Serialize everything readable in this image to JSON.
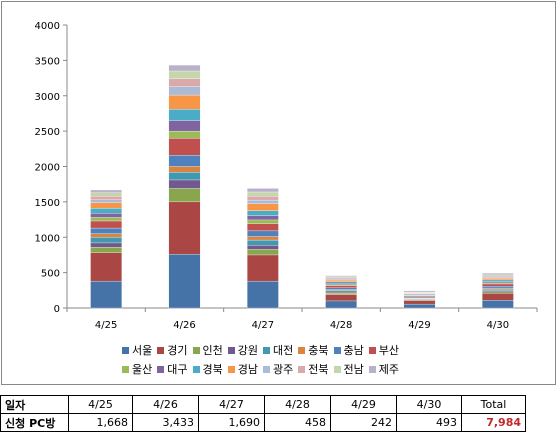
{
  "chart_data": {
    "type": "bar",
    "stacked": true,
    "categories": [
      "4/25",
      "4/26",
      "4/27",
      "4/28",
      "4/29",
      "4/30"
    ],
    "ylim": [
      0,
      4000
    ],
    "yticks": [
      0,
      500,
      1000,
      1500,
      2000,
      2500,
      3000,
      3500,
      4000
    ],
    "ytick_labels": [
      "0",
      "500",
      "1000",
      "1500",
      "2000",
      "2500",
      "3000",
      "3500",
      "4000"
    ],
    "legend_position": "bottom",
    "series": [
      {
        "name": "서울",
        "color": "#4572A7",
        "values": [
          380,
          760,
          380,
          100,
          55,
          110
        ]
      },
      {
        "name": "경기",
        "color": "#AA4643",
        "values": [
          400,
          740,
          370,
          90,
          50,
          100
        ]
      },
      {
        "name": "인천",
        "color": "#89A54E",
        "values": [
          80,
          190,
          80,
          20,
          10,
          20
        ]
      },
      {
        "name": "강원",
        "color": "#71588F",
        "values": [
          60,
          120,
          55,
          15,
          7,
          15
        ]
      },
      {
        "name": "대전",
        "color": "#4198AF",
        "values": [
          80,
          110,
          75,
          20,
          10,
          22
        ]
      },
      {
        "name": "충북",
        "color": "#DB843D",
        "values": [
          50,
          80,
          50,
          15,
          7,
          15
        ]
      },
      {
        "name": "충남",
        "color": "#4F81BD",
        "values": [
          80,
          160,
          80,
          25,
          12,
          25
        ]
      },
      {
        "name": "부산",
        "color": "#C0504D",
        "values": [
          100,
          240,
          100,
          30,
          15,
          33
        ]
      },
      {
        "name": "울산",
        "color": "#9BBB59",
        "values": [
          50,
          100,
          55,
          15,
          7,
          15
        ]
      },
      {
        "name": "대구",
        "color": "#8064A2",
        "values": [
          60,
          150,
          60,
          20,
          9,
          20
        ]
      },
      {
        "name": "경북",
        "color": "#4BACC6",
        "values": [
          70,
          160,
          70,
          20,
          10,
          22
        ]
      },
      {
        "name": "경남",
        "color": "#F79646",
        "values": [
          80,
          200,
          100,
          25,
          12,
          25
        ]
      },
      {
        "name": "광주",
        "color": "#AABAD7",
        "values": [
          40,
          120,
          50,
          15,
          7,
          15
        ]
      },
      {
        "name": "전북",
        "color": "#D9AAA9",
        "values": [
          50,
          110,
          55,
          15,
          7,
          15
        ]
      },
      {
        "name": "전남",
        "color": "#C6D6AC",
        "values": [
          50,
          110,
          60,
          18,
          8,
          18
        ]
      },
      {
        "name": "제주",
        "color": "#BAB0C9",
        "values": [
          38,
          83,
          50,
          15,
          16,
          23
        ]
      }
    ]
  },
  "table": {
    "row1_label": "일자",
    "row2_label": "신청 PC방",
    "dates": [
      "4/25",
      "4/26",
      "4/27",
      "4/28",
      "4/29",
      "4/30"
    ],
    "counts": [
      "1,668",
      "3,433",
      "1,690",
      "458",
      "242",
      "493"
    ],
    "total_label": "Total",
    "total_value": "7,984"
  }
}
